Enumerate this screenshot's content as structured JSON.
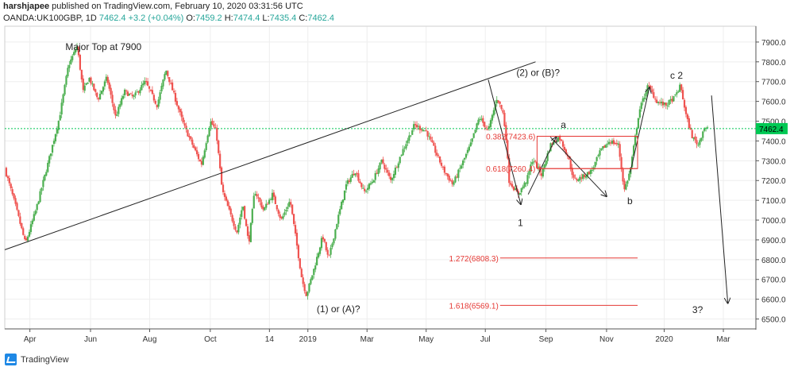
{
  "header": {
    "publisher": "harshjapee",
    "published_text": "published on TradingView.com, February 10, 2020 03:31:56 UTC",
    "symbol": "OANDA:UK100GBP, 1D",
    "last": "7462.4",
    "change": "+3.2 (+0.04%)",
    "open_label": "O:",
    "open": "7459.2",
    "high_label": "H:",
    "high": "7474.4",
    "low_label": "L:",
    "low": "7435.4",
    "close_label": "C:",
    "close": "7462.4"
  },
  "footer": {
    "brand": "TradingView"
  },
  "colors": {
    "up": "#4caf50",
    "down": "#ef5350",
    "price_line": "#00c853",
    "fib": "#e53935",
    "grid": "#eeeeee"
  },
  "chart_data": {
    "type": "candlestick",
    "y_ticks": [
      6500,
      6600,
      6700,
      6800,
      6900,
      7000,
      7100,
      7200,
      7300,
      7400,
      7500,
      7600,
      7700,
      7800,
      7900
    ],
    "y_tick_labels": [
      "6500.0",
      "6600.0",
      "6700.0",
      "6800.0",
      "6900.0",
      "7000.0",
      "7100.0",
      "7200.0",
      "7300.0",
      "7400.0",
      "7500.0",
      "7600.0",
      "7700.0",
      "7800.0",
      "7900.0"
    ],
    "ylim": [
      6450,
      7980
    ],
    "x_ticks": [
      "Apr",
      "Jun",
      "Aug",
      "Oct",
      "14",
      "2019",
      "Mar",
      "May",
      "Jul",
      "Sep",
      "Nov",
      "2020",
      "Mar"
    ],
    "x_tick_pos": [
      0.0,
      2.05,
      4.05,
      6.1,
      8.1,
      9.4,
      11.4,
      13.4,
      15.4,
      17.45,
      19.5,
      21.45,
      23.45
    ],
    "xlim": [
      -0.85,
      24.55
    ],
    "last_price": 7462.4,
    "last_price_label": "7462.4",
    "price_path": [
      [
        -0.85,
        7260
      ],
      [
        -0.5,
        7080
      ],
      [
        -0.15,
        6880
      ],
      [
        0.2,
        7050
      ],
      [
        0.6,
        7280
      ],
      [
        1.0,
        7520
      ],
      [
        1.3,
        7780
      ],
      [
        1.6,
        7880
      ],
      [
        1.8,
        7650
      ],
      [
        2.0,
        7720
      ],
      [
        2.3,
        7610
      ],
      [
        2.6,
        7720
      ],
      [
        2.9,
        7520
      ],
      [
        3.2,
        7650
      ],
      [
        3.5,
        7620
      ],
      [
        3.9,
        7700
      ],
      [
        4.3,
        7580
      ],
      [
        4.6,
        7760
      ],
      [
        4.9,
        7620
      ],
      [
        5.2,
        7480
      ],
      [
        5.5,
        7380
      ],
      [
        5.8,
        7280
      ],
      [
        6.1,
        7500
      ],
      [
        6.3,
        7450
      ],
      [
        6.5,
        7150
      ],
      [
        6.8,
        7020
      ],
      [
        7.0,
        6940
      ],
      [
        7.2,
        7080
      ],
      [
        7.4,
        6880
      ],
      [
        7.6,
        7150
      ],
      [
        7.9,
        7050
      ],
      [
        8.2,
        7130
      ],
      [
        8.5,
        7000
      ],
      [
        8.8,
        7100
      ],
      [
        9.0,
        6900
      ],
      [
        9.2,
        6700
      ],
      [
        9.35,
        6620
      ],
      [
        9.6,
        6750
      ],
      [
        9.9,
        6920
      ],
      [
        10.1,
        6800
      ],
      [
        10.4,
        7000
      ],
      [
        10.7,
        7180
      ],
      [
        11.0,
        7250
      ],
      [
        11.3,
        7140
      ],
      [
        11.6,
        7200
      ],
      [
        11.9,
        7300
      ],
      [
        12.2,
        7200
      ],
      [
        12.6,
        7350
      ],
      [
        13.0,
        7480
      ],
      [
        13.4,
        7450
      ],
      [
        13.7,
        7350
      ],
      [
        14.0,
        7250
      ],
      [
        14.3,
        7180
      ],
      [
        14.6,
        7280
      ],
      [
        14.9,
        7380
      ],
      [
        15.2,
        7520
      ],
      [
        15.5,
        7450
      ],
      [
        15.8,
        7620
      ],
      [
        16.0,
        7540
      ],
      [
        16.1,
        7420
      ],
      [
        16.2,
        7200
      ],
      [
        16.5,
        7130
      ],
      [
        16.8,
        7200
      ],
      [
        17.0,
        7310
      ],
      [
        17.3,
        7230
      ],
      [
        17.6,
        7380
      ],
      [
        17.9,
        7420
      ],
      [
        18.2,
        7320
      ],
      [
        18.4,
        7200
      ],
      [
        18.7,
        7220
      ],
      [
        19.0,
        7250
      ],
      [
        19.3,
        7350
      ],
      [
        19.6,
        7400
      ],
      [
        19.9,
        7380
      ],
      [
        20.1,
        7150
      ],
      [
        20.3,
        7250
      ],
      [
        20.6,
        7550
      ],
      [
        20.9,
        7680
      ],
      [
        21.2,
        7600
      ],
      [
        21.5,
        7580
      ],
      [
        21.8,
        7620
      ],
      [
        22.0,
        7680
      ],
      [
        22.2,
        7520
      ],
      [
        22.4,
        7420
      ],
      [
        22.6,
        7380
      ],
      [
        22.8,
        7470
      ],
      [
        22.95,
        7462
      ]
    ],
    "trendline": [
      [
        -0.85,
        6850
      ],
      [
        17.1,
        7800
      ]
    ],
    "wave_lines": [
      [
        [
          15.5,
          7710
        ],
        [
          16.6,
          7080
        ]
      ],
      [
        [
          16.85,
          7130
        ],
        [
          17.8,
          7420
        ]
      ],
      [
        [
          17.6,
          7420
        ],
        [
          19.5,
          7120
        ]
      ],
      [
        [
          20.3,
          7240
        ],
        [
          20.95,
          7670
        ]
      ],
      [
        [
          23.05,
          7630
        ],
        [
          23.6,
          6580
        ]
      ]
    ],
    "fib_levels": [
      {
        "label": "0.382(7423.6)",
        "value": 7423.6,
        "x": [
          17.15,
          20.55
        ]
      },
      {
        "label": "0.618(7260.4)",
        "value": 7260.4,
        "x": [
          17.15,
          20.55
        ]
      },
      {
        "label": "1.272(6808.3)",
        "value": 6808.3,
        "x": [
          15.9,
          20.55
        ]
      },
      {
        "label": "1.618(6569.1)",
        "value": 6569.1,
        "x": [
          15.9,
          20.55
        ]
      }
    ],
    "fib_box": {
      "x": [
        17.15,
        20.55
      ],
      "y": [
        7260.4,
        7423.6
      ]
    },
    "annotations": [
      {
        "text": "Major Top at 7900",
        "x": 1.2,
        "y": 7860
      },
      {
        "text": "(2) or (B)?",
        "x": 16.45,
        "y": 7730
      },
      {
        "text": "(1) or (A)?",
        "x": 9.7,
        "y": 6535
      },
      {
        "text": "a",
        "x": 17.95,
        "y": 7465
      },
      {
        "text": "1",
        "x": 16.5,
        "y": 6970
      },
      {
        "text": "b",
        "x": 20.2,
        "y": 7080
      },
      {
        "text": "c 2",
        "x": 21.65,
        "y": 7715
      },
      {
        "text": "3?",
        "x": 22.4,
        "y": 6530
      }
    ]
  }
}
